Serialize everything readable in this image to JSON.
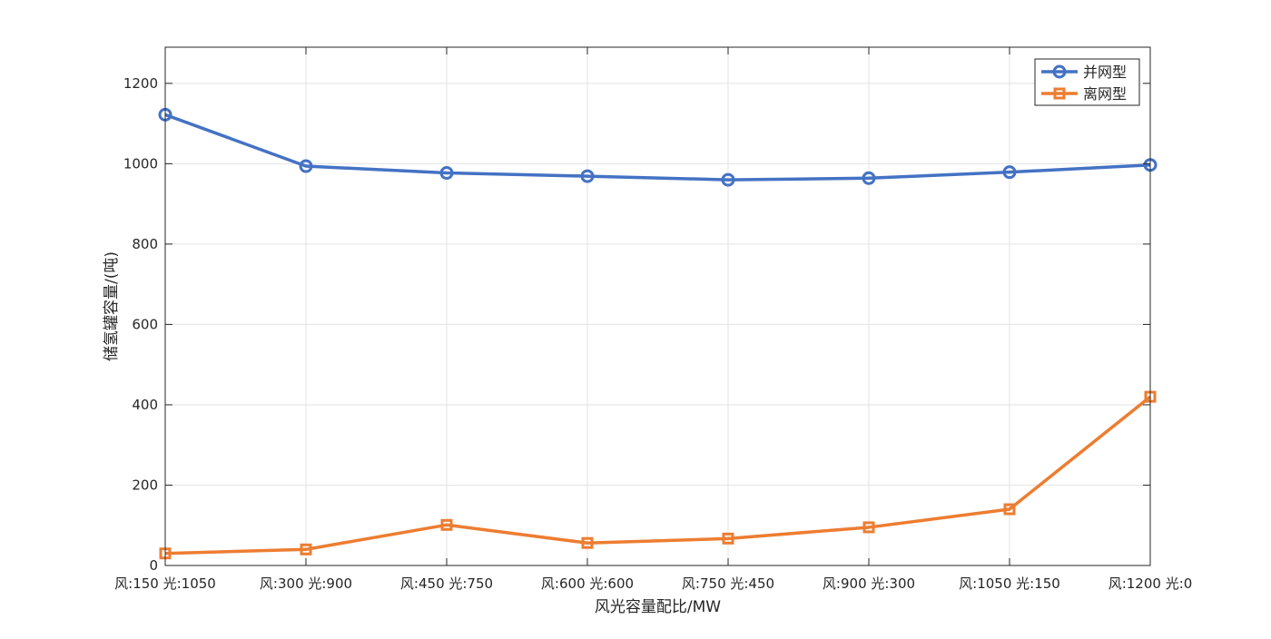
{
  "chart_data": {
    "type": "line",
    "categories": [
      "风:150 光:1050",
      "风:300 光:900",
      "风:450 光:750",
      "风:600 光:600",
      "风:750 光:450",
      "风:900 光:300",
      "风:1050 光:150",
      "风:1200 光:0"
    ],
    "series": [
      {
        "name": "并网型",
        "marker": "circle",
        "color": "#4472C4",
        "values": [
          1122,
          994,
          977,
          969,
          960,
          964,
          979,
          997
        ]
      },
      {
        "name": "离网型",
        "marker": "square",
        "color": "#ED7D31",
        "values": [
          30,
          40,
          101,
          56,
          67,
          95,
          140,
          420
        ]
      }
    ],
    "xlabel": "风光容量配比/MW",
    "ylabel": "储氢罐容量/(吨)",
    "ylim": [
      0,
      1290
    ],
    "yticks": [
      0,
      200,
      400,
      600,
      800,
      1000,
      1200
    ],
    "ytick_labels": [
      "0",
      "200",
      "400",
      "600",
      "800",
      "1000",
      "1200"
    ],
    "grid": true,
    "legend_position": "top-right"
  }
}
